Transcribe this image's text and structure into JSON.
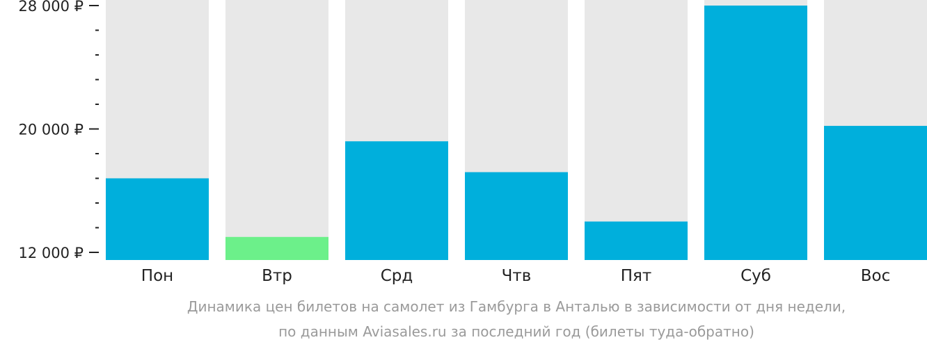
{
  "chart_data": {
    "type": "bar",
    "categories": [
      "Пон",
      "Втр",
      "Срд",
      "Чтв",
      "Пят",
      "Суб",
      "Вос"
    ],
    "values": [
      16800,
      13000,
      19200,
      17200,
      14000,
      28000,
      20200
    ],
    "ylim": [
      12000,
      28000
    ],
    "y_ticks": [
      {
        "value": 12000,
        "label": "12 000 ₽"
      },
      {
        "value": 20000,
        "label": "20 000 ₽"
      },
      {
        "value": 28000,
        "label": "28 000 ₽"
      }
    ],
    "y_minor_tick_step": 1600,
    "colors": {
      "bar": "#00afdc",
      "highlight_bar": "#6cf08a",
      "background_bar": "#e8e8e8",
      "axis": "#222222"
    },
    "highlight_index": 1,
    "caption_lines": [
      "Динамика цен билетов на самолет из Гамбурга в Анталью в зависимости от дня недели,",
      "по данным Aviasales.ru за последний год (билеты туда-обратно)"
    ]
  }
}
